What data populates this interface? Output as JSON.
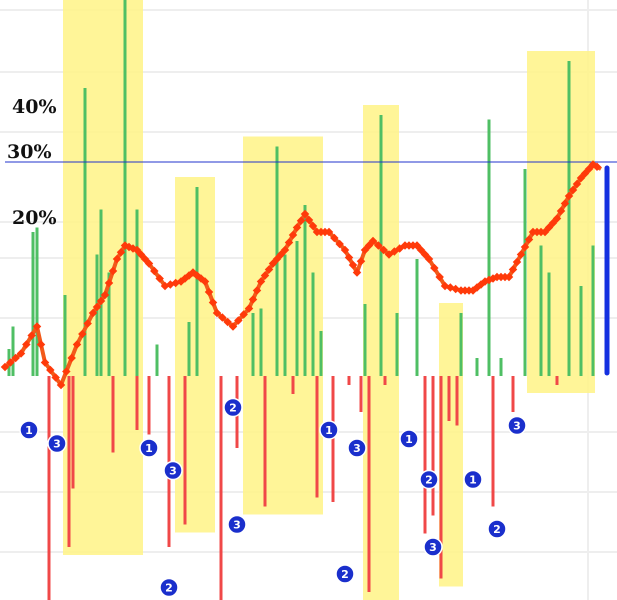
{
  "chart_data": {
    "type": "bar",
    "title": "",
    "xlabel": "",
    "ylabel": "",
    "y_ticks": [
      "40%",
      "30%",
      "20%"
    ],
    "reference_line": "30%",
    "grid": true,
    "colors": {
      "up_bar": "#4fbf64",
      "down_bar": "#f04848",
      "line": "#f25a1a",
      "line_dot": "#ff3a0a",
      "highlight": "#fff48a",
      "reference": "#2233cc",
      "marker": "#1a2fcc",
      "right_bar": "#1430e0"
    },
    "highlight_periods": [
      {
        "start": 15,
        "end": 34
      },
      {
        "start": 43,
        "end": 52
      },
      {
        "start": 60,
        "end": 79
      },
      {
        "start": 90,
        "end": 98
      },
      {
        "start": 109,
        "end": 114
      },
      {
        "start": 131,
        "end": 147
      }
    ],
    "up_bars": [
      {
        "i": 1,
        "v": 6
      },
      {
        "i": 2,
        "v": 11
      },
      {
        "i": 7,
        "v": 32
      },
      {
        "i": 8,
        "v": 33
      },
      {
        "i": 15,
        "v": 18
      },
      {
        "i": 20,
        "v": 64
      },
      {
        "i": 23,
        "v": 27
      },
      {
        "i": 24,
        "v": 37
      },
      {
        "i": 26,
        "v": 23
      },
      {
        "i": 30,
        "v": 88
      },
      {
        "i": 33,
        "v": 37
      },
      {
        "i": 38,
        "v": 7
      },
      {
        "i": 46,
        "v": 12
      },
      {
        "i": 48,
        "v": 42
      },
      {
        "i": 62,
        "v": 14
      },
      {
        "i": 64,
        "v": 15
      },
      {
        "i": 68,
        "v": 51
      },
      {
        "i": 70,
        "v": 27
      },
      {
        "i": 73,
        "v": 30
      },
      {
        "i": 75,
        "v": 38
      },
      {
        "i": 77,
        "v": 23
      },
      {
        "i": 79,
        "v": 10
      },
      {
        "i": 90,
        "v": 16
      },
      {
        "i": 94,
        "v": 58
      },
      {
        "i": 98,
        "v": 14
      },
      {
        "i": 103,
        "v": 26
      },
      {
        "i": 114,
        "v": 14
      },
      {
        "i": 118,
        "v": 4
      },
      {
        "i": 121,
        "v": 57
      },
      {
        "i": 124,
        "v": 4
      },
      {
        "i": 130,
        "v": 46
      },
      {
        "i": 134,
        "v": 29
      },
      {
        "i": 136,
        "v": 23
      },
      {
        "i": 141,
        "v": 70
      },
      {
        "i": 144,
        "v": 20
      },
      {
        "i": 147,
        "v": 29
      }
    ],
    "down_bars": [
      {
        "i": 11,
        "v": -50
      },
      {
        "i": 16,
        "v": -38
      },
      {
        "i": 17,
        "v": -25
      },
      {
        "i": 27,
        "v": -17
      },
      {
        "i": 33,
        "v": -12
      },
      {
        "i": 36,
        "v": -13
      },
      {
        "i": 41,
        "v": -38
      },
      {
        "i": 45,
        "v": -33
      },
      {
        "i": 54,
        "v": -50
      },
      {
        "i": 58,
        "v": -16
      },
      {
        "i": 65,
        "v": -29
      },
      {
        "i": 72,
        "v": -4
      },
      {
        "i": 78,
        "v": -27
      },
      {
        "i": 82,
        "v": -28
      },
      {
        "i": 86,
        "v": -2
      },
      {
        "i": 89,
        "v": -8
      },
      {
        "i": 91,
        "v": -48
      },
      {
        "i": 95,
        "v": -2
      },
      {
        "i": 105,
        "v": -35
      },
      {
        "i": 107,
        "v": -31
      },
      {
        "i": 109,
        "v": -45
      },
      {
        "i": 111,
        "v": -10
      },
      {
        "i": 113,
        "v": -11
      },
      {
        "i": 122,
        "v": -29
      },
      {
        "i": 127,
        "v": -8
      },
      {
        "i": 138,
        "v": -2
      }
    ],
    "line_series": [
      {
        "i": 0,
        "v": 2
      },
      {
        "i": 4,
        "v": 5
      },
      {
        "i": 8,
        "v": 11
      },
      {
        "i": 10,
        "v": 3
      },
      {
        "i": 14,
        "v": -2
      },
      {
        "i": 18,
        "v": 7
      },
      {
        "i": 22,
        "v": 14
      },
      {
        "i": 25,
        "v": 18
      },
      {
        "i": 28,
        "v": 26
      },
      {
        "i": 30,
        "v": 29
      },
      {
        "i": 33,
        "v": 28
      },
      {
        "i": 36,
        "v": 25
      },
      {
        "i": 40,
        "v": 20
      },
      {
        "i": 44,
        "v": 21
      },
      {
        "i": 47,
        "v": 23
      },
      {
        "i": 50,
        "v": 21
      },
      {
        "i": 53,
        "v": 14
      },
      {
        "i": 57,
        "v": 11
      },
      {
        "i": 61,
        "v": 15
      },
      {
        "i": 64,
        "v": 21
      },
      {
        "i": 67,
        "v": 25
      },
      {
        "i": 70,
        "v": 28
      },
      {
        "i": 73,
        "v": 33
      },
      {
        "i": 75,
        "v": 36
      },
      {
        "i": 78,
        "v": 32
      },
      {
        "i": 81,
        "v": 32
      },
      {
        "i": 85,
        "v": 28
      },
      {
        "i": 88,
        "v": 23
      },
      {
        "i": 90,
        "v": 28
      },
      {
        "i": 92,
        "v": 30
      },
      {
        "i": 96,
        "v": 27
      },
      {
        "i": 100,
        "v": 29
      },
      {
        "i": 103,
        "v": 29
      },
      {
        "i": 106,
        "v": 26
      },
      {
        "i": 110,
        "v": 20
      },
      {
        "i": 114,
        "v": 19
      },
      {
        "i": 117,
        "v": 19
      },
      {
        "i": 120,
        "v": 21
      },
      {
        "i": 123,
        "v": 22
      },
      {
        "i": 126,
        "v": 22
      },
      {
        "i": 129,
        "v": 27
      },
      {
        "i": 132,
        "v": 32
      },
      {
        "i": 135,
        "v": 32
      },
      {
        "i": 138,
        "v": 35
      },
      {
        "i": 141,
        "v": 40
      },
      {
        "i": 144,
        "v": 44
      },
      {
        "i": 147,
        "v": 47
      },
      {
        "i": 149,
        "v": 46
      }
    ],
    "markers": [
      {
        "label": "1",
        "i": 6,
        "v": -12
      },
      {
        "label": "3",
        "i": 13,
        "v": -15
      },
      {
        "label": "2",
        "i": 11,
        "v": -52
      },
      {
        "label": "1",
        "i": 36,
        "v": -16
      },
      {
        "label": "3",
        "i": 42,
        "v": -21
      },
      {
        "label": "2",
        "i": 41,
        "v": -47
      },
      {
        "label": "2",
        "i": 57,
        "v": -7
      },
      {
        "label": "3",
        "i": 58,
        "v": -33
      },
      {
        "label": "1",
        "i": 54,
        "v": -54
      },
      {
        "label": "1",
        "i": 81,
        "v": -12
      },
      {
        "label": "3",
        "i": 88,
        "v": -16
      },
      {
        "label": "2",
        "i": 85,
        "v": -44
      },
      {
        "label": "1",
        "i": 101,
        "v": -14
      },
      {
        "label": "2",
        "i": 106,
        "v": -23
      },
      {
        "label": "3",
        "i": 107,
        "v": -38
      },
      {
        "label": "1",
        "i": 117,
        "v": -23
      },
      {
        "label": "2",
        "i": 123,
        "v": -34
      },
      {
        "label": "3",
        "i": 128,
        "v": -11
      }
    ]
  }
}
